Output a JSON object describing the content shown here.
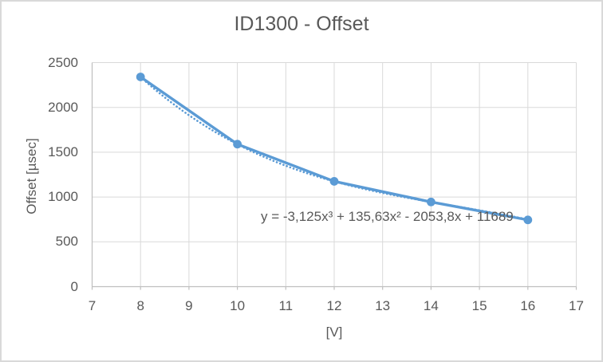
{
  "chart_data": {
    "type": "line",
    "title": "ID1300 - Offset",
    "xlabel": "[V]",
    "ylabel": "Offset [µsec]",
    "series": [
      {
        "name": "Offset",
        "x": [
          8,
          10,
          12,
          14,
          16
        ],
        "y": [
          2340,
          1590,
          1175,
          945,
          745
        ]
      }
    ],
    "xlim": [
      7,
      17
    ],
    "ylim": [
      0,
      2500
    ],
    "x_ticks": [
      7,
      8,
      9,
      10,
      11,
      12,
      13,
      14,
      15,
      16,
      17
    ],
    "y_ticks": [
      0,
      500,
      1000,
      1500,
      2000,
      2500
    ],
    "grid": true,
    "legend": false,
    "marker": "circle",
    "trendline": {
      "type": "polynomial",
      "degree": 3,
      "coefficients": [
        -3.125,
        135.63,
        -2053.8,
        11689
      ],
      "equation": "y = -3,125x³ + 135,63x² - 2053,8x + 11689",
      "line_style": "dotted",
      "x_range": [
        8,
        16
      ]
    },
    "colors": {
      "series": "#5b9bd5",
      "gridline": "#d9d9d9",
      "axis_line": "#bfbfbf",
      "text": "#595959",
      "background": "#ffffff",
      "frame_border": "#d9d9d9"
    }
  }
}
